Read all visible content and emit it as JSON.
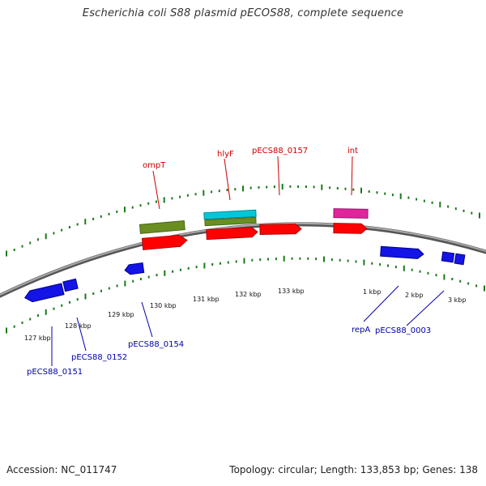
{
  "title": "Escherichia coli S88 plasmid pECOS88, complete sequence",
  "footer": {
    "accession": "Accession: NC_011747",
    "summary": "Topology: circular; Length: 133,853 bp; Genes: 138"
  },
  "colors": {
    "backbone": "#888888",
    "tick_green": "#1a7a1a",
    "red_gene": "#ff0000",
    "olive_gene": "#6b8e23",
    "cyan_gene": "#00c8d8",
    "magenta_gene": "#e0249c",
    "blue_gene": "#1414e6",
    "label_red": "#cc0000",
    "label_blue": "#0000aa"
  },
  "scale_labels": [
    "127 kbp",
    "128 kbp",
    "129 kbp",
    "130 kbp",
    "131 kbp",
    "132 kbp",
    "133 kbp",
    "1 kbp",
    "2 kbp",
    "3 kbp"
  ],
  "gene_labels_top": [
    "ompT",
    "hlyF",
    "pECS88_0157",
    "int"
  ],
  "gene_labels_bottom": [
    "pECS88_0151",
    "pECS88_0152",
    "pECS88_0154",
    "repA",
    "pECS88_0003"
  ]
}
